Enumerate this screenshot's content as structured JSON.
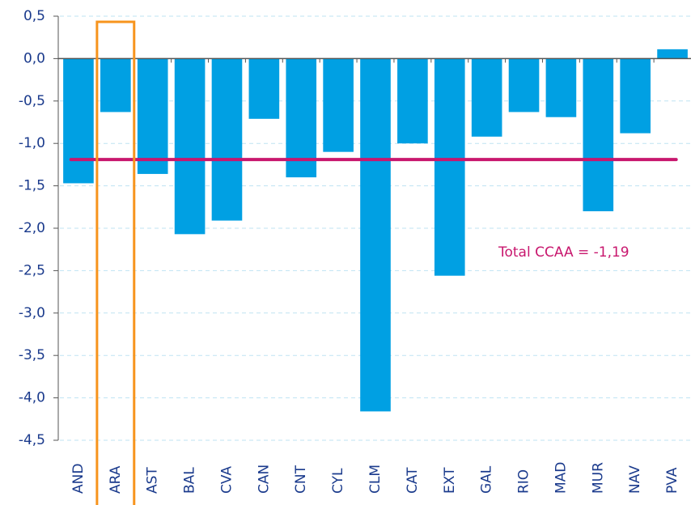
{
  "chart_data": {
    "type": "bar",
    "categories": [
      "AND",
      "ARA",
      "AST",
      "BAL",
      "CVA",
      "CAN",
      "CNT",
      "CYL",
      "CLM",
      "CAT",
      "EXT",
      "GAL",
      "RIO",
      "MAD",
      "MUR",
      "NAV",
      "PVA"
    ],
    "values": [
      -1.47,
      -0.63,
      -1.36,
      -2.07,
      -1.91,
      -0.71,
      -1.4,
      -1.1,
      -4.16,
      -1.0,
      -2.56,
      -0.92,
      -0.63,
      -0.69,
      -1.8,
      -0.88,
      0.11
    ],
    "color": "#00a0e3",
    "ylim": [
      -4.5,
      0.5
    ],
    "yticks": [
      {
        "value": 0.5,
        "label": "0,5"
      },
      {
        "value": 0,
        "label": "0,0"
      },
      {
        "value": -0.5,
        "label": "-0,5"
      },
      {
        "value": -1,
        "label": "-1,0"
      },
      {
        "value": -1.5,
        "label": "-1,5"
      },
      {
        "value": -2,
        "label": "-2,0"
      },
      {
        "value": -2.5,
        "label": "-2,5"
      },
      {
        "value": -3,
        "label": "-3,0"
      },
      {
        "value": -3.5,
        "label": "-3,5"
      },
      {
        "value": -4,
        "label": "-4,0"
      },
      {
        "value": -4.5,
        "label": "-4,5"
      }
    ],
    "grid": true,
    "reference_line": {
      "value": -1.19,
      "label": "Total CCAA = -1,19",
      "color": "#c8176e"
    },
    "highlight": {
      "category": "ARA",
      "color": "#f7941d"
    }
  }
}
